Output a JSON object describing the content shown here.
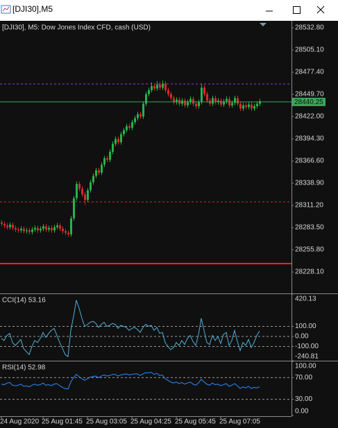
{
  "window": {
    "title": "[DJI30],M5"
  },
  "chart_data": [
    {
      "type": "candlestick",
      "title": "[DJI30], M5:  Dow Jones Index CFD, cash (USD)",
      "categories": [
        "24 Aug 2020",
        null,
        null,
        null,
        null,
        null,
        null,
        null,
        null,
        null,
        null,
        null,
        null,
        null,
        null,
        "25 Aug 01:45",
        null,
        null,
        null,
        null,
        null,
        null,
        null,
        null,
        null,
        null,
        null,
        null,
        null,
        null,
        null,
        "25 Aug 03:05",
        null,
        null,
        null,
        null,
        null,
        null,
        null,
        null,
        null,
        null,
        null,
        null,
        null,
        null,
        null,
        "25 Aug 04:25",
        null,
        null,
        null,
        null,
        null,
        null,
        null,
        null,
        null,
        null,
        null,
        null,
        null,
        null,
        null,
        "25 Aug 05:45",
        null,
        null,
        null,
        null,
        null,
        null,
        null,
        null,
        null,
        null,
        null,
        null,
        null,
        null,
        null,
        "25 Aug 07:05",
        null,
        null,
        null,
        null,
        null,
        null,
        null,
        null,
        null,
        null,
        null,
        null,
        null,
        null
      ],
      "ohlc": [
        [
          28290,
          28293,
          28285,
          28288
        ],
        [
          28288,
          28291,
          28283,
          28286
        ],
        [
          28286,
          28289,
          28281,
          28284
        ],
        [
          28284,
          28290,
          28281,
          28287
        ],
        [
          28287,
          28290,
          28280,
          28283
        ],
        [
          28283,
          28286,
          28278,
          28281
        ],
        [
          28281,
          28284,
          28277,
          28280
        ],
        [
          28280,
          28285,
          28277,
          28282
        ],
        [
          28282,
          28285,
          28276,
          28279
        ],
        [
          28279,
          28283,
          28276,
          28280
        ],
        [
          28280,
          28283,
          28275,
          28278
        ],
        [
          28278,
          28284,
          28275,
          28281
        ],
        [
          28281,
          28286,
          28278,
          28283
        ],
        [
          28283,
          28286,
          28277,
          28280
        ],
        [
          28280,
          28285,
          28277,
          28282
        ],
        [
          28282,
          28288,
          28279,
          28285
        ],
        [
          28285,
          28288,
          28278,
          28281
        ],
        [
          28281,
          28286,
          28278,
          28283
        ],
        [
          28283,
          28286,
          28277,
          28280
        ],
        [
          28280,
          28287,
          28277,
          28284
        ],
        [
          28284,
          28289,
          28281,
          28286
        ],
        [
          28286,
          28289,
          28279,
          28282
        ],
        [
          28282,
          28285,
          28276,
          28279
        ],
        [
          28279,
          28282,
          28274,
          28277
        ],
        [
          28277,
          28280,
          28272,
          28275
        ],
        [
          28275,
          28298,
          28272,
          28295
        ],
        [
          28295,
          28323,
          28292,
          28320
        ],
        [
          28320,
          28341,
          28317,
          28338
        ],
        [
          28338,
          28341,
          28329,
          28332
        ],
        [
          28332,
          28335,
          28322,
          28325
        ],
        [
          28325,
          28328,
          28312,
          28318
        ],
        [
          28318,
          28333,
          28315,
          28330
        ],
        [
          28330,
          28343,
          28327,
          28340
        ],
        [
          28340,
          28351,
          28337,
          28348
        ],
        [
          28348,
          28358,
          28345,
          28355
        ],
        [
          28355,
          28358,
          28349,
          28352
        ],
        [
          28352,
          28365,
          28349,
          28362
        ],
        [
          28362,
          28373,
          28359,
          28370
        ],
        [
          28370,
          28373,
          28365,
          28368
        ],
        [
          28368,
          28381,
          28365,
          28378
        ],
        [
          28378,
          28391,
          28375,
          28388
        ],
        [
          28388,
          28397,
          28385,
          28394
        ],
        [
          28394,
          28397,
          28387,
          28390
        ],
        [
          28390,
          28403,
          28387,
          28400
        ],
        [
          28400,
          28408,
          28397,
          28405
        ],
        [
          28405,
          28413,
          28402,
          28410
        ],
        [
          28410,
          28413,
          28405,
          28408
        ],
        [
          28408,
          28418,
          28405,
          28415
        ],
        [
          28415,
          28423,
          28412,
          28420
        ],
        [
          28420,
          28428,
          28417,
          28425
        ],
        [
          28425,
          28428,
          28419,
          28422
        ],
        [
          28422,
          28441,
          28419,
          28438
        ],
        [
          28438,
          28453,
          28435,
          28450
        ],
        [
          28450,
          28458,
          28447,
          28455
        ],
        [
          28455,
          28465,
          28452,
          28460
        ],
        [
          28460,
          28463,
          28454,
          28457
        ],
        [
          28457,
          28466,
          28454,
          28462
        ],
        [
          28462,
          28465,
          28455,
          28458
        ],
        [
          28458,
          28467,
          28455,
          28463
        ],
        [
          28463,
          28466,
          28452,
          28455
        ],
        [
          28455,
          28458,
          28447,
          28450
        ],
        [
          28450,
          28453,
          28442,
          28445
        ],
        [
          28445,
          28448,
          28437,
          28440
        ],
        [
          28440,
          28446,
          28437,
          28443
        ],
        [
          28443,
          28446,
          28435,
          28438
        ],
        [
          28438,
          28445,
          28435,
          28442
        ],
        [
          28442,
          28445,
          28433,
          28436
        ],
        [
          28436,
          28443,
          28433,
          28440
        ],
        [
          28440,
          28447,
          28437,
          28444
        ],
        [
          28444,
          28447,
          28435,
          28438
        ],
        [
          28438,
          28441,
          28432,
          28435
        ],
        [
          28435,
          28443,
          28432,
          28440
        ],
        [
          28440,
          28463,
          28437,
          28458
        ],
        [
          28458,
          28461,
          28447,
          28450
        ],
        [
          28450,
          28453,
          28439,
          28442
        ],
        [
          28442,
          28445,
          28435,
          28438
        ],
        [
          28438,
          28448,
          28435,
          28445
        ],
        [
          28445,
          28448,
          28437,
          28440
        ],
        [
          28440,
          28445,
          28437,
          28442
        ],
        [
          28442,
          28445,
          28434,
          28437
        ],
        [
          28437,
          28444,
          28434,
          28441
        ],
        [
          28441,
          28447,
          28438,
          28444
        ],
        [
          28444,
          28447,
          28433,
          28436
        ],
        [
          28436,
          28442,
          28433,
          28439
        ],
        [
          28439,
          28448,
          28436,
          28445
        ],
        [
          28445,
          28448,
          28435,
          28438
        ],
        [
          28438,
          28441,
          28429,
          28432
        ],
        [
          28432,
          28439,
          28429,
          28436
        ],
        [
          28436,
          28439,
          28431,
          28434
        ],
        [
          28434,
          28440,
          28431,
          28437
        ],
        [
          28437,
          28440,
          28429,
          28432
        ],
        [
          28432,
          28438,
          28429,
          28435
        ],
        [
          28435,
          28441,
          28432,
          28438
        ],
        [
          28438,
          28444,
          28435,
          28441
        ]
      ],
      "up_color": "#26b34a",
      "down_color": "#d42a2a",
      "ylim": [
        28201.3,
        28540.6
      ],
      "yticks": [
        {
          "value": 28532.8,
          "label": "28532.80"
        },
        {
          "value": 28505.1,
          "label": "28505.10"
        },
        {
          "value": 28477.4,
          "label": "28477.40"
        },
        {
          "value": 28449.7,
          "label": "28449.70"
        },
        {
          "value": 28422,
          "label": "28422.00"
        },
        {
          "value": 28394.3,
          "label": "28394.30"
        },
        {
          "value": 28366.6,
          "label": "28366.60"
        },
        {
          "value": 28338.9,
          "label": "28338.90"
        },
        {
          "value": 28311.2,
          "label": "28311.20"
        },
        {
          "value": 28283.5,
          "label": "28283.50"
        },
        {
          "value": 28255.8,
          "label": "28255.80"
        },
        {
          "value": 28228.1,
          "label": "28228.10"
        }
      ],
      "levels": [
        {
          "value": 28462.7,
          "color": "#8e44d6",
          "style": "dashed"
        },
        {
          "value": 28315.5,
          "color": "#c0392b",
          "style": "dashed"
        },
        {
          "value": 28238.5,
          "color": "#ff2020",
          "style": "solid"
        }
      ],
      "current_price": {
        "value": 28440.25,
        "color": "#3fa35a"
      }
    },
    {
      "type": "line",
      "title": "CCI(14) 53.16",
      "color": "#4fb0d8",
      "values": [
        -20,
        -40,
        10,
        30,
        -60,
        -90,
        -60,
        -30,
        -120,
        -150,
        -180,
        -100,
        -40,
        -60,
        -20,
        40,
        -10,
        30,
        60,
        80,
        10,
        -60,
        -120,
        -180,
        -200,
        60,
        200,
        360,
        280,
        180,
        100,
        120,
        140,
        150,
        130,
        90,
        120,
        140,
        100,
        110,
        130,
        120,
        80,
        110,
        100,
        90,
        60,
        80,
        90,
        70,
        40,
        90,
        120,
        100,
        110,
        60,
        90,
        30,
        40,
        -60,
        -100,
        -130,
        -110,
        -60,
        -90,
        -40,
        -80,
        -20,
        10,
        -50,
        -90,
        20,
        180,
        60,
        -60,
        -80,
        10,
        -40,
        0,
        -70,
        20,
        40,
        -90,
        -40,
        60,
        -50,
        -140,
        -60,
        -90,
        -30,
        -110,
        -60,
        10,
        53.16
      ],
      "ylim": [
        -240.81,
        420.13
      ],
      "yticks": [
        420.13,
        {
          "value": 100,
          "label": "100.00"
        },
        {
          "value": 0,
          "label": "0.00"
        },
        {
          "value": -100,
          "label": "-100.00"
        },
        -240.81
      ],
      "levels": [
        100,
        0,
        -100
      ]
    },
    {
      "type": "line",
      "title": "RSI(14) 52.98",
      "color": "#2a8cff",
      "values": [
        58,
        57,
        60,
        61,
        56,
        55,
        56,
        58,
        54,
        55,
        53,
        56,
        58,
        56,
        57,
        60,
        56,
        57,
        55,
        58,
        59,
        55,
        52,
        50,
        49,
        62,
        70,
        76,
        72,
        68,
        65,
        68,
        71,
        72,
        73,
        70,
        73,
        75,
        73,
        74,
        76,
        76,
        73,
        75,
        76,
        77,
        75,
        76,
        77,
        77,
        74,
        77,
        79,
        79,
        80,
        76,
        78,
        74,
        75,
        68,
        65,
        62,
        60,
        62,
        59,
        61,
        58,
        60,
        62,
        58,
        56,
        60,
        67,
        62,
        58,
        56,
        60,
        57,
        58,
        55,
        57,
        59,
        54,
        56,
        59,
        55,
        50,
        53,
        51,
        54,
        50,
        52,
        51,
        52.98
      ],
      "ylim": [
        0,
        100
      ],
      "yticks": [
        {
          "value": 100,
          "label": "100.00"
        },
        {
          "value": 70,
          "label": "70.00"
        },
        {
          "value": 30,
          "label": "30.00"
        },
        {
          "value": 0,
          "label": "0.00"
        }
      ],
      "levels": [
        70,
        30
      ]
    }
  ]
}
